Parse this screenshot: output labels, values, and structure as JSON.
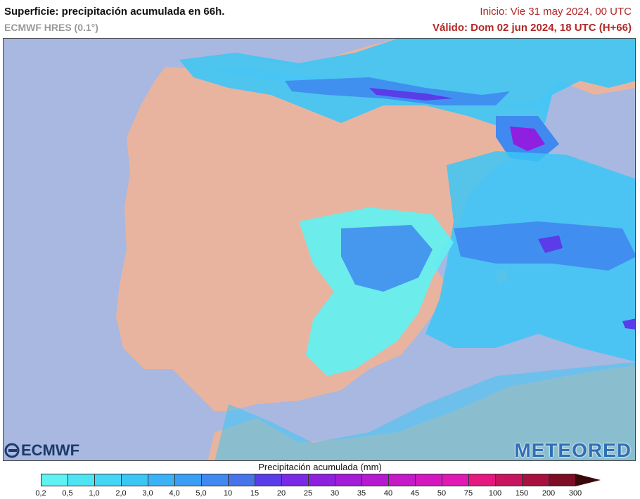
{
  "header": {
    "title": "Superficie: precipitación acumulada en 66h.",
    "model": "ECMWF HRES (0.1°)",
    "init": "Inicio: Vie 31 may 2024, 00 UTC",
    "valid": "Válido: Dom 02 jun 2024, 18 UTC (H+66)"
  },
  "logos": {
    "left": "ECMWF",
    "right": "METEORED"
  },
  "legend": {
    "title": "Precipitación acumulada (mm)",
    "labels": [
      "0,2",
      "0,5",
      "1,0",
      "2,0",
      "3,0",
      "4,0",
      "5,0",
      "10",
      "15",
      "20",
      "25",
      "30",
      "35",
      "40",
      "45",
      "50",
      "75",
      "100",
      "150",
      "200",
      "300"
    ],
    "colors": [
      "#5ef2f2",
      "#4fe4f4",
      "#45d6f5",
      "#3cc6f6",
      "#3ab2f5",
      "#3a9ef4",
      "#3f89f0",
      "#4874ea",
      "#5a3ce8",
      "#7a2ae6",
      "#8f20e0",
      "#a41cd8",
      "#b51ad0",
      "#c41ac8",
      "#d418c0",
      "#e018b4",
      "#e5187f",
      "#c8145e",
      "#a8103f",
      "#7e0c24"
    ],
    "arrow_color": "#3a0a0a"
  },
  "map": {
    "sea_color": "#a8b8e0",
    "land_color": "#e8b4a0",
    "precip_colors": [
      "#5ef2f2",
      "#3cc6f6",
      "#3f89f0",
      "#5a3ce8",
      "#8f20e0",
      "#c41ac8"
    ]
  }
}
